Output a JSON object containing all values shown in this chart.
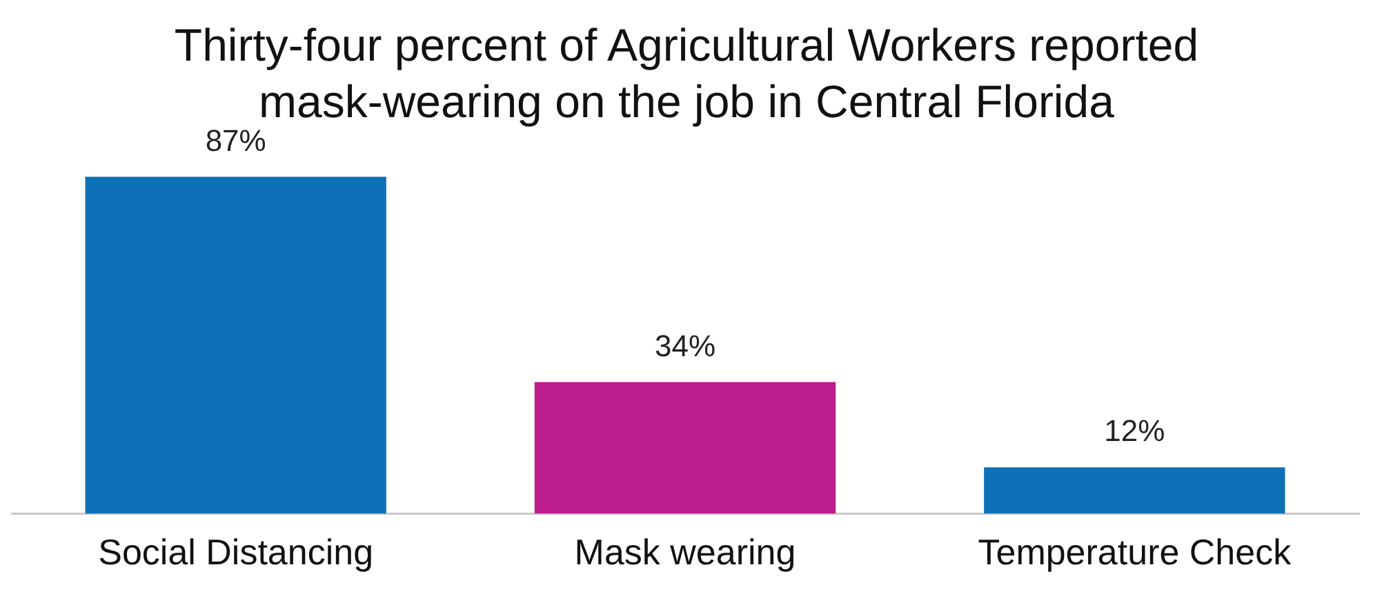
{
  "chart_data": {
    "type": "bar",
    "title": "Thirty-four percent of Agricultural Workers reported mask-wearing on the job in Central Florida",
    "categories": [
      "Social Distancing",
      "Mask wearing",
      "Temperature Check"
    ],
    "values": [
      87,
      34,
      12
    ],
    "colors": [
      "#0e71b8",
      "#bd1c8c",
      "#0e71b8"
    ],
    "value_labels": [
      "87%",
      "34%",
      "12%"
    ],
    "grid": false,
    "legend": false
  }
}
